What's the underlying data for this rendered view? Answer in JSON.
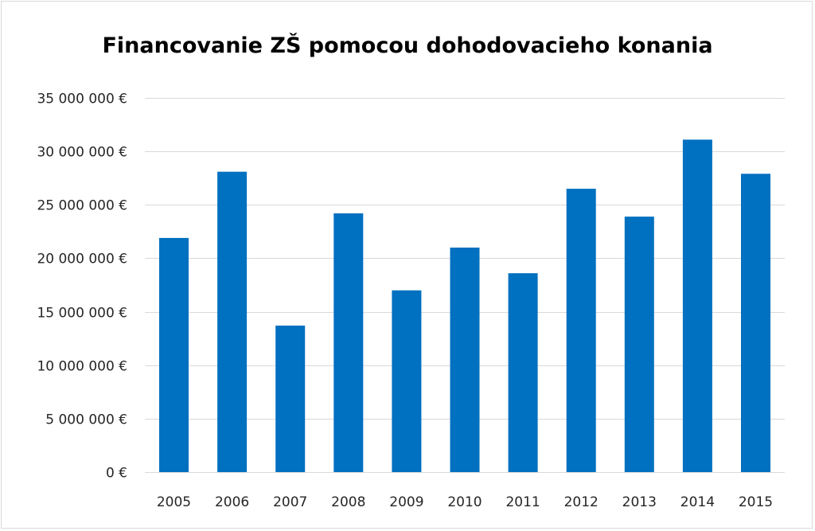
{
  "chart_data": {
    "type": "bar",
    "title": "Financovanie ZŠ pomocou dohodovacieho konania",
    "xlabel": "",
    "ylabel": "",
    "categories": [
      "2005",
      "2006",
      "2007",
      "2008",
      "2009",
      "2010",
      "2011",
      "2012",
      "2013",
      "2014",
      "2015"
    ],
    "values": [
      21900000,
      28100000,
      13700000,
      24200000,
      17000000,
      21000000,
      18600000,
      26500000,
      23900000,
      31100000,
      27900000
    ],
    "ylim": [
      0,
      35000000
    ],
    "yticks": [
      0,
      5000000,
      10000000,
      15000000,
      20000000,
      25000000,
      30000000,
      35000000
    ],
    "ytick_labels": [
      "0 €",
      "5 000 000 €",
      "10 000 000 €",
      "15 000 000 €",
      "20 000 000 €",
      "25 000 000 €",
      "30 000 000 €",
      "35 000 000 €"
    ],
    "bar_color": "#0070C0",
    "grid_color": "#d9d9d9",
    "grid": true,
    "legend": "none"
  }
}
